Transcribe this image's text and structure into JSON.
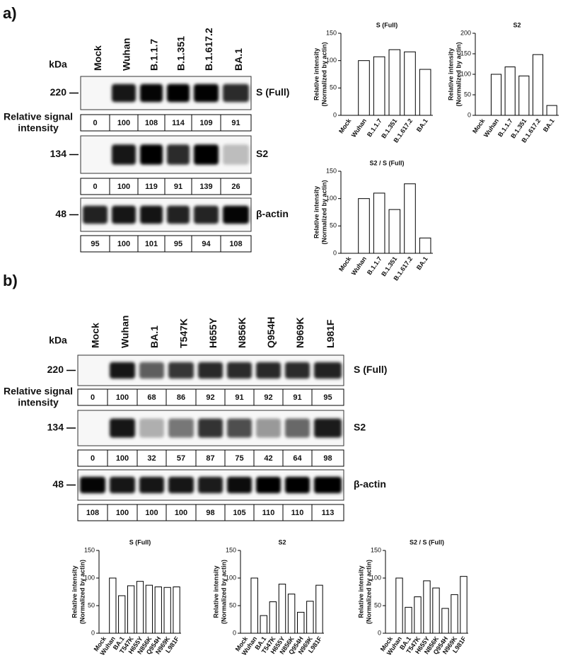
{
  "panel_a": {
    "label": "a)",
    "kda": "kDa",
    "lanes": [
      "Mock",
      "Wuhan",
      "B.1.1.7",
      "B.1.351",
      "B.1.617.2",
      "BA.1"
    ],
    "signal_label": [
      "Relative signal",
      "intensity"
    ],
    "blots": [
      {
        "size": "220",
        "name": "S (Full)",
        "values": [
          0,
          100,
          108,
          114,
          109,
          91
        ]
      },
      {
        "size": "134",
        "name": "S2",
        "values": [
          0,
          100,
          119,
          91,
          139,
          26
        ]
      },
      {
        "size": "48",
        "name": "β-actin",
        "values": [
          95,
          100,
          101,
          95,
          94,
          108
        ]
      }
    ],
    "charts": [
      {
        "type": "bar",
        "title": "S (Full)",
        "ylabel": [
          "Relative intensity",
          "(Normalized by actin)"
        ],
        "color": "#ffffff",
        "categories": [
          "Mock",
          "Wuhan",
          "B.1.1.7",
          "B.1.351",
          "B.1.617.2",
          "BA.1"
        ],
        "values": [
          0,
          100,
          107,
          120,
          116,
          84
        ],
        "ylim": [
          0,
          150
        ],
        "yticks": [
          0,
          50,
          100,
          150
        ]
      },
      {
        "type": "bar",
        "title": "S2",
        "ylabel": [
          "Relative intensity",
          "(Normalized by actin)"
        ],
        "color": "#ffffff",
        "categories": [
          "Mock",
          "Wuhan",
          "B.1.1.7",
          "B.1.351",
          "B.1.617.2",
          "BA.1"
        ],
        "values": [
          0,
          100,
          118,
          96,
          148,
          24
        ],
        "ylim": [
          0,
          200
        ],
        "yticks": [
          0,
          50,
          100,
          150,
          200
        ]
      },
      {
        "type": "bar",
        "title": "S2 / S (Full)",
        "ylabel": [
          "Relative intensity",
          "(Normalized by actin)"
        ],
        "color": "#ffffff",
        "categories": [
          "Mock",
          "Wuhan",
          "B.1.1.7",
          "B.1.351",
          "B.1.617.2",
          "BA.1"
        ],
        "values": [
          0,
          100,
          110,
          80,
          127,
          28
        ],
        "ylim": [
          0,
          150
        ],
        "yticks": [
          0,
          50,
          100,
          150
        ]
      }
    ]
  },
  "panel_b": {
    "label": "b)",
    "kda": "kDa",
    "lanes": [
      "Mock",
      "Wuhan",
      "BA.1",
      "T547K",
      "H655Y",
      "N856K",
      "Q954H",
      "N969K",
      "L981F"
    ],
    "signal_label": [
      "Relative signal",
      "intensity"
    ],
    "blots": [
      {
        "size": "220",
        "name": "S (Full)",
        "values": [
          0,
          100,
          68,
          86,
          92,
          91,
          92,
          91,
          95
        ]
      },
      {
        "size": "134",
        "name": "S2",
        "values": [
          0,
          100,
          32,
          57,
          87,
          75,
          42,
          64,
          98
        ]
      },
      {
        "size": "48",
        "name": "β-actin",
        "values": [
          108,
          100,
          100,
          100,
          98,
          105,
          110,
          110,
          113
        ]
      }
    ],
    "charts": [
      {
        "type": "bar",
        "title": "S (Full)",
        "ylabel": [
          "Relative intensity",
          "(Normalized by actin)"
        ],
        "color": "#ffffff",
        "categories": [
          "Mock",
          "Wuhan",
          "BA.1",
          "T547K",
          "H655Y",
          "N856K",
          "Q954H",
          "N969K",
          "L981F"
        ],
        "values": [
          0,
          100,
          68,
          86,
          94,
          87,
          84,
          83,
          84
        ],
        "ylim": [
          0,
          150
        ],
        "yticks": [
          0,
          50,
          100,
          150
        ]
      },
      {
        "type": "bar",
        "title": "S2",
        "ylabel": [
          "Relative intensity",
          "(Normalized by actin)"
        ],
        "color": "#ffffff",
        "categories": [
          "Mock",
          "Wuhan",
          "BA.1",
          "T547K",
          "H655Y",
          "N856K",
          "Q954H",
          "N969K",
          "L981F"
        ],
        "values": [
          0,
          100,
          32,
          57,
          89,
          71,
          38,
          58,
          87
        ],
        "ylim": [
          0,
          150
        ],
        "yticks": [
          0,
          50,
          100,
          150
        ]
      },
      {
        "type": "bar",
        "title": "S2 / S (Full)",
        "ylabel": [
          "Relative intensity",
          "(Normalized by actin)"
        ],
        "color": "#ffffff",
        "categories": [
          "Mock",
          "Wuhan",
          "BA.1",
          "T547K",
          "H655Y",
          "N856K",
          "Q954H",
          "N969K",
          "L981F"
        ],
        "values": [
          0,
          100,
          47,
          66,
          95,
          82,
          45,
          70,
          103
        ],
        "ylim": [
          0,
          150
        ],
        "yticks": [
          0,
          50,
          100,
          150
        ]
      }
    ]
  }
}
